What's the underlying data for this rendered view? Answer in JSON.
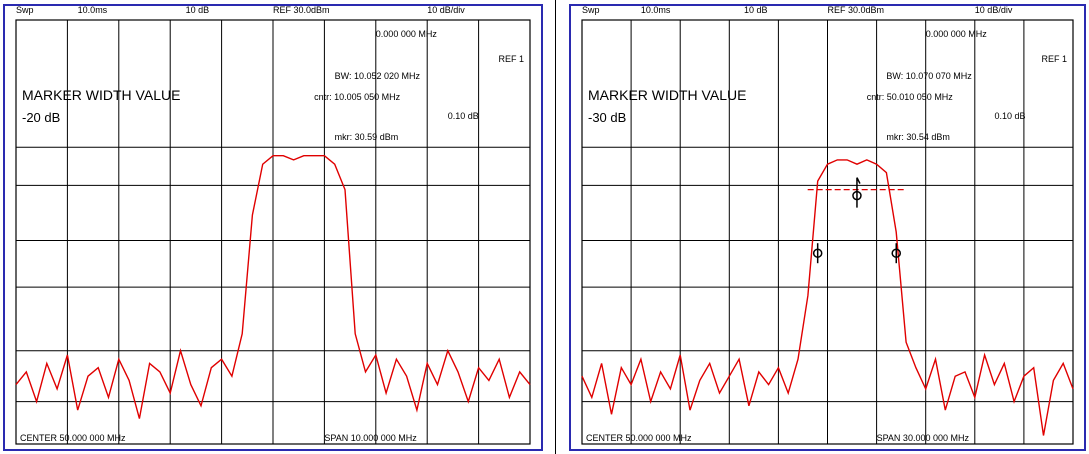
{
  "chart_data": [
    {
      "type": "line",
      "title": "",
      "header": {
        "sweep": "Swp",
        "time": "10.0ms",
        "at": "10 dB",
        "ref": "REF 30.0dBm",
        "scale": "10 dB/div"
      },
      "annotation": [
        "MARKER WIDTH VALUE",
        "-20 dB"
      ],
      "readouts": {
        "freq": "0.000 000 MHz",
        "ref_label": "REF 1",
        "bw": "BW: 10.052 020 MHz",
        "center": "cntr: 10.005 050 MHz",
        "delta": "0.10 dB",
        "marker": "mkr: 30.59 dBm"
      },
      "footer": {
        "center": "CENTER 50.000 000 MHz",
        "span": "SPAN 10.000 000 MHz"
      },
      "marker_level_db": -20,
      "noise_level_db": -75,
      "x": [
        40.0,
        40.4,
        40.8,
        41.2,
        41.6,
        42.0,
        42.4,
        42.8,
        43.2,
        43.6,
        44.0,
        44.4,
        44.8,
        45.2,
        45.6,
        46.0,
        46.4,
        46.8,
        47.2,
        47.6,
        48.0,
        48.4,
        48.8,
        49.2,
        49.6,
        50.0,
        50.4,
        50.8,
        51.2,
        51.6,
        52.0,
        52.4,
        52.8,
        53.2,
        53.6,
        54.0,
        54.4,
        54.8,
        55.2,
        55.6,
        56.0,
        56.4,
        56.8,
        57.2,
        57.6,
        58.0,
        58.4,
        58.8,
        59.2,
        59.6,
        60.0
      ],
      "y": [
        -76,
        -73,
        -80,
        -71,
        -77,
        -69,
        -82,
        -74,
        -72,
        -79,
        -70,
        -75,
        -84,
        -71,
        -73,
        -78,
        -68,
        -76,
        -81,
        -72,
        -70,
        -74,
        -64,
        -36,
        -24,
        -22,
        -22,
        -23,
        -22,
        -22,
        -22,
        -24,
        -30,
        -64,
        -73,
        -69,
        -78,
        -70,
        -74,
        -82,
        -71,
        -76,
        -68,
        -73,
        -80,
        -72,
        -75,
        -70,
        -79,
        -73,
        -76
      ]
    },
    {
      "type": "line",
      "title": "",
      "header": {
        "sweep": "Swp",
        "time": "10.0ms",
        "at": "10 dB",
        "ref": "REF 30.0dBm",
        "scale": "10 dB/div"
      },
      "annotation": [
        "MARKER WIDTH VALUE",
        "-30 dB"
      ],
      "readouts": {
        "freq": "0.000 000 MHz",
        "ref_label": "REF 1",
        "bw": "BW: 10.070 070 MHz",
        "center": "cntr: 50.010 050 MHz",
        "delta": "0.10 dB",
        "marker": "mkr: 30.54 dBm"
      },
      "footer": {
        "center": "CENTER 50.000 000 MHz",
        "span": "SPAN 30.000 000 MHz"
      },
      "marker_level_db": -30,
      "noise_level_db": -75,
      "x": [
        40.0,
        40.4,
        40.8,
        41.2,
        41.6,
        42.0,
        42.4,
        42.8,
        43.2,
        43.6,
        44.0,
        44.4,
        44.8,
        45.2,
        45.6,
        46.0,
        46.4,
        46.8,
        47.2,
        47.6,
        48.0,
        48.4,
        48.8,
        49.2,
        49.6,
        50.0,
        50.4,
        50.8,
        51.2,
        51.6,
        52.0,
        52.4,
        52.8,
        53.2,
        53.6,
        54.0,
        54.4,
        54.8,
        55.2,
        55.6,
        56.0,
        56.4,
        56.8,
        57.2,
        57.6,
        58.0,
        58.4,
        58.8,
        59.2,
        59.6,
        60.0
      ],
      "y": [
        -74,
        -79,
        -71,
        -83,
        -72,
        -76,
        -70,
        -80,
        -73,
        -77,
        -69,
        -82,
        -75,
        -71,
        -78,
        -74,
        -70,
        -81,
        -73,
        -76,
        -72,
        -78,
        -70,
        -55,
        -28,
        -24,
        -23,
        -23,
        -24,
        -23,
        -24,
        -26,
        -40,
        -66,
        -72,
        -77,
        -70,
        -82,
        -74,
        -73,
        -79,
        -69,
        -76,
        -71,
        -80,
        -74,
        -72,
        -88,
        -75,
        -71,
        -77
      ]
    }
  ]
}
